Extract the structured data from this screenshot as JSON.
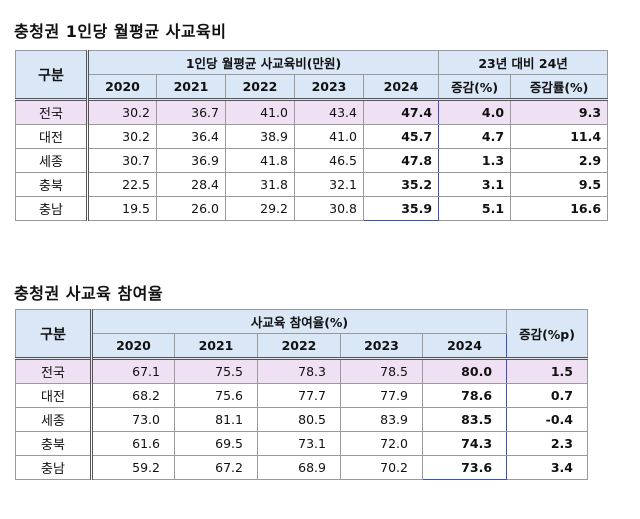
{
  "table1": {
    "title": "충청권 1인당 월평균 사교육비",
    "gubun": "구분",
    "group_header": "1인당 월평균 사교육비(만원)",
    "compare_header": "23년 대비 24년",
    "years": [
      "2020",
      "2021",
      "2022",
      "2023",
      "2024"
    ],
    "compare_cols": [
      "증감(%)",
      "증감률(%)"
    ],
    "rows": [
      {
        "label": "전국",
        "values": [
          "30.2",
          "36.7",
          "41.0",
          "43.4",
          "47.4"
        ],
        "diff": "4.0",
        "rate": "9.3"
      },
      {
        "label": "대전",
        "values": [
          "30.2",
          "36.4",
          "38.9",
          "41.0",
          "45.7"
        ],
        "diff": "4.7",
        "rate": "11.4"
      },
      {
        "label": "세종",
        "values": [
          "30.7",
          "36.9",
          "41.8",
          "46.5",
          "47.8"
        ],
        "diff": "1.3",
        "rate": "2.9"
      },
      {
        "label": "충북",
        "values": [
          "22.5",
          "28.4",
          "31.8",
          "32.1",
          "35.2"
        ],
        "diff": "3.1",
        "rate": "9.5"
      },
      {
        "label": "충남",
        "values": [
          "19.5",
          "26.0",
          "29.2",
          "30.8",
          "35.9"
        ],
        "diff": "5.1",
        "rate": "16.6"
      }
    ]
  },
  "table2": {
    "title": "충청권 사교육 참여율",
    "gubun": "구분",
    "group_header": "사교육 참여율(%)",
    "change_header": "증감(%p)",
    "years": [
      "2020",
      "2021",
      "2022",
      "2023",
      "2024"
    ],
    "rows": [
      {
        "label": "전국",
        "values": [
          "67.1",
          "75.5",
          "78.3",
          "78.5",
          "80.0"
        ],
        "change": "1.5"
      },
      {
        "label": "대전",
        "values": [
          "68.2",
          "75.6",
          "77.7",
          "77.9",
          "78.6"
        ],
        "change": "0.7"
      },
      {
        "label": "세종",
        "values": [
          "73.0",
          "81.1",
          "80.5",
          "83.9",
          "83.5"
        ],
        "change": "-0.4"
      },
      {
        "label": "충북",
        "values": [
          "61.6",
          "69.5",
          "73.1",
          "72.0",
          "74.3"
        ],
        "change": "2.3"
      },
      {
        "label": "충남",
        "values": [
          "59.2",
          "67.2",
          "68.9",
          "70.2",
          "73.6"
        ],
        "change": "3.4"
      }
    ]
  }
}
